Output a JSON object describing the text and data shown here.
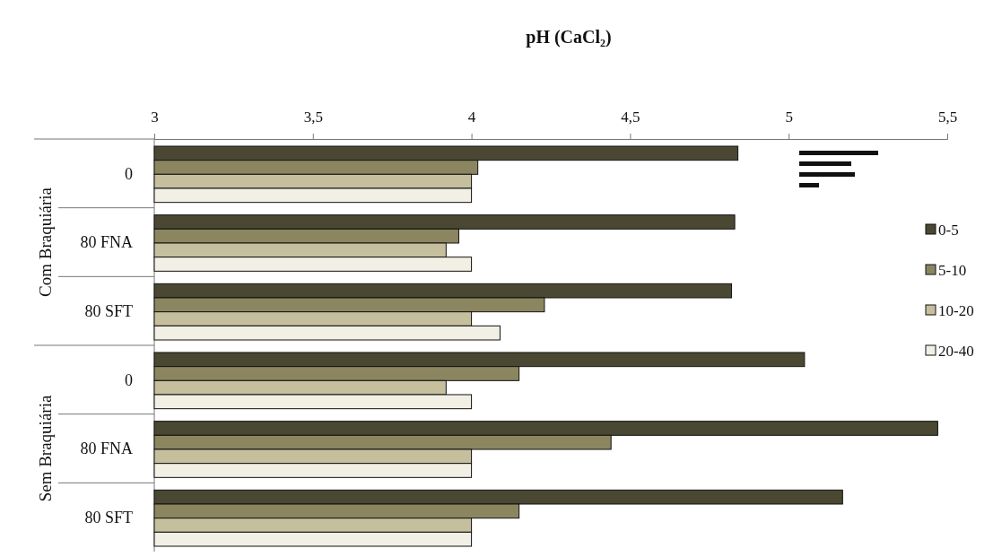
{
  "chart_data": {
    "type": "bar",
    "orientation": "horizontal",
    "title": "pH (CaCl₂)",
    "categories": [
      "0",
      "80 FNA",
      "80 SFT",
      "0",
      "80 FNA",
      "80 SFT"
    ],
    "annotations": [
      "Com Braquiária",
      "Sem Braquiária"
    ],
    "series": [
      {
        "name": "0-5",
        "color": "#4a4832",
        "values": [
          4.84,
          4.83,
          4.82,
          5.05,
          5.47,
          5.17
        ]
      },
      {
        "name": "5-10",
        "color": "#8c8660",
        "values": [
          4.02,
          3.96,
          4.23,
          4.15,
          4.44,
          4.15
        ]
      },
      {
        "name": "10-20",
        "color": "#c6bf9e",
        "values": [
          4.0,
          3.92,
          4.0,
          3.92,
          4.0,
          4.0
        ]
      },
      {
        "name": "20-40",
        "color": "#f2efe4",
        "values": [
          4.0,
          4.0,
          4.09,
          4.0,
          4.0,
          4.0
        ]
      }
    ],
    "xlim": [
      3,
      5.5
    ],
    "xticks": [
      3,
      {
        "value": 3.5,
        "label": "3,5"
      },
      4,
      {
        "value": 4.5,
        "label": "4,5"
      },
      5,
      {
        "value": 5.5,
        "label": "5,5"
      }
    ],
    "legend": "right"
  }
}
